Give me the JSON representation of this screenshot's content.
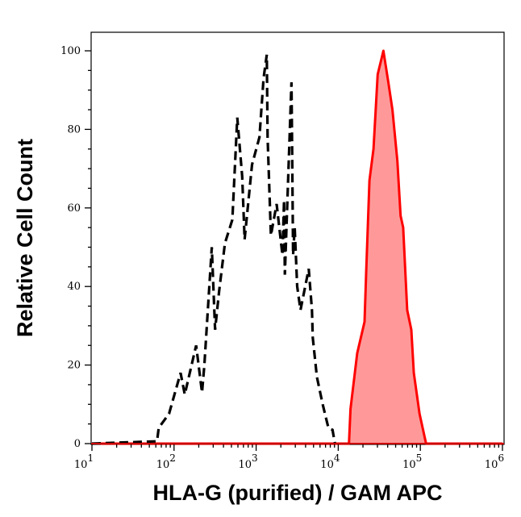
{
  "chart_data": {
    "type": "area",
    "xlabel": "HLA-G (purified) / GAM APC",
    "ylabel": "Relative Cell Count",
    "x_scale": "log",
    "xlim": [
      10,
      1000000
    ],
    "ylim": [
      0,
      105
    ],
    "x_ticks": [
      10,
      100,
      1000,
      10000,
      100000,
      1000000
    ],
    "x_tick_labels": [
      {
        "base": "10",
        "exp": "1"
      },
      {
        "base": "10",
        "exp": "2"
      },
      {
        "base": "10",
        "exp": "3"
      },
      {
        "base": "10",
        "exp": "4"
      },
      {
        "base": "10",
        "exp": "5"
      },
      {
        "base": "10",
        "exp": "6"
      }
    ],
    "y_ticks": [
      0,
      20,
      40,
      60,
      80,
      100
    ],
    "y_tick_labels": [
      "0",
      "20",
      "40",
      "60",
      "80",
      "100"
    ],
    "grid": false,
    "series": [
      {
        "style": "dashed-line",
        "color": "#000000",
        "x": [
          10,
          62,
          65,
          87,
          120,
          135,
          186,
          219,
          234,
          288,
          316,
          355,
          417,
          513,
          589,
          676,
          724,
          891,
          1096,
          1230,
          1349,
          1380,
          1514,
          1778,
          2089,
          2188,
          2239,
          2692,
          2754,
          2818,
          2951,
          3162,
          3467,
          4365,
          4786,
          4898,
          5495,
          6457,
          7586,
          8511,
          9120
        ],
        "y": [
          0,
          0.6,
          4,
          7.6,
          18,
          12.5,
          25,
          13,
          20,
          50,
          29,
          39,
          51,
          57,
          83,
          68,
          52,
          71,
          78,
          93,
          99,
          78,
          53,
          61,
          48,
          62,
          43,
          92,
          71,
          48,
          55,
          40,
          34,
          44.5,
          34,
          27,
          17,
          10,
          4,
          3.5,
          0
        ]
      },
      {
        "style": "filled-area",
        "color": "#ff0000",
        "fill": "#ff9999",
        "x": [
          10,
          13500,
          14100,
          17000,
          20900,
          21900,
          24000,
          26900,
          30200,
          35500,
          40700,
          45700,
          52500,
          57500,
          61700,
          69200,
          77600,
          83200,
          97700,
          117500,
          1000000
        ],
        "y": [
          0,
          0,
          8.8,
          23,
          31,
          44,
          67,
          75,
          94,
          100,
          92,
          85,
          72,
          58,
          55,
          34,
          29,
          18,
          7.6,
          0,
          0
        ]
      }
    ]
  }
}
